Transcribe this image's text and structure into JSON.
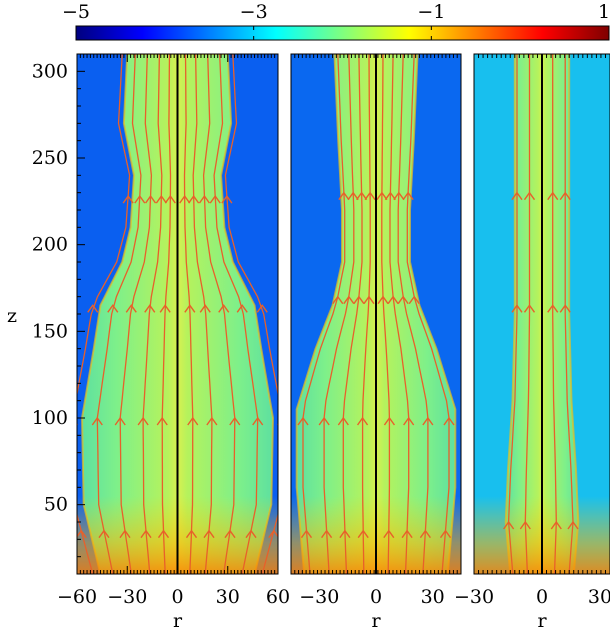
{
  "chart_data": {
    "type": "heatmap",
    "colorbar": {
      "min": -5,
      "max": 1,
      "tick_labels": [
        "−5",
        "−3",
        "−1",
        "1"
      ],
      "tick_values": [
        -5,
        -3,
        -1,
        1
      ],
      "colormap": [
        "#00007f",
        "#0000ff",
        "#007fff",
        "#00ffff",
        "#7fff7f",
        "#ffff00",
        "#ff7f00",
        "#ff0000",
        "#7f0000"
      ]
    },
    "ylabel": "z",
    "ylim": [
      10,
      310
    ],
    "y_ticks": [
      {
        "value": 50,
        "label": "50"
      },
      {
        "value": 100,
        "label": "100"
      },
      {
        "value": 150,
        "label": "150"
      },
      {
        "value": 200,
        "label": "200"
      },
      {
        "value": 250,
        "label": "250"
      },
      {
        "value": 300,
        "label": "300"
      }
    ],
    "panels": [
      {
        "xlabel": "r",
        "xlim": [
          -60,
          60
        ],
        "x_ticks": [
          {
            "value": -60,
            "label": "−60"
          },
          {
            "value": -30,
            "label": "−30"
          },
          {
            "value": 0,
            "label": "0"
          },
          {
            "value": 30,
            "label": "30"
          },
          {
            "value": 60,
            "label": "60"
          }
        ],
        "background": "#0a5ff0",
        "cocoon": {
          "width_by_z": [
            [
              10,
              46
            ],
            [
              50,
              56
            ],
            [
              100,
              57
            ],
            [
              140,
              50
            ],
            [
              165,
              46
            ],
            [
              190,
              33
            ],
            [
              210,
              28
            ],
            [
              240,
              26
            ],
            [
              270,
              32
            ],
            [
              310,
              30
            ]
          ],
          "fill_z_max": 310
        },
        "field_lines_r": [
          -55,
          -42,
          -30,
          -18,
          -8,
          8,
          18,
          30,
          42,
          55
        ],
        "arrow_z": [
          35,
          100,
          165,
          228
        ]
      },
      {
        "xlabel": "r",
        "xlim": [
          -45,
          45
        ],
        "x_ticks": [
          {
            "value": -30,
            "label": "−30"
          },
          {
            "value": 0,
            "label": "0"
          },
          {
            "value": 30,
            "label": "30"
          }
        ],
        "background": "#0a68f0",
        "cocoon": {
          "width_by_z": [
            [
              10,
              38
            ],
            [
              60,
              42
            ],
            [
              105,
              42
            ],
            [
              140,
              32
            ],
            [
              165,
              23
            ],
            [
              190,
              18
            ],
            [
              220,
              18
            ],
            [
              260,
              20
            ],
            [
              310,
              22
            ]
          ],
          "fill_z_max": 310
        },
        "field_lines_r": [
          -38,
          -27,
          -17,
          -7,
          7,
          17,
          27,
          38
        ],
        "arrow_z": [
          35,
          100,
          170,
          230
        ]
      },
      {
        "xlabel": "r",
        "xlim": [
          -30,
          30
        ],
        "x_ticks": [
          {
            "value": -30,
            "label": "−30"
          },
          {
            "value": 0,
            "label": "0"
          },
          {
            "value": 30,
            "label": "30"
          }
        ],
        "background": "#18bfee",
        "cocoon": {
          "width_by_z": [
            [
              10,
              14
            ],
            [
              40,
              16
            ],
            [
              70,
              15
            ],
            [
              110,
              13
            ],
            [
              160,
              12
            ],
            [
              210,
              12
            ],
            [
              260,
              12
            ],
            [
              310,
              12
            ]
          ],
          "fill_z_max": 310
        },
        "field_lines_r": [
          -14,
          -7,
          6,
          13
        ],
        "arrow_z": [
          40,
          165,
          230
        ]
      }
    ]
  }
}
